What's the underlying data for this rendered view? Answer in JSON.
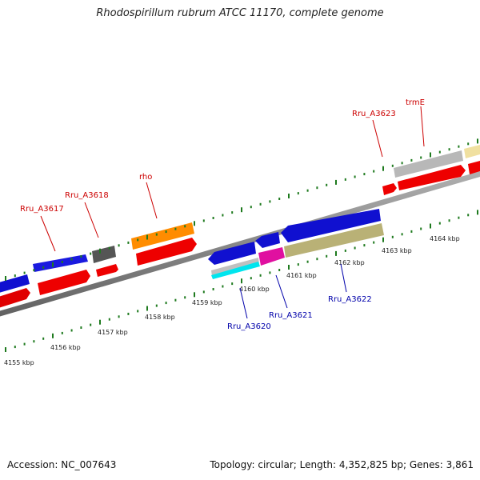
{
  "title": "Rhodospirillum rubrum ATCC 11170, complete genome",
  "footer": {
    "accession": "Accession: NC_007643",
    "stats": "Topology: circular; Length: 4,352,825 bp; Genes: 3,861"
  },
  "colors": {
    "backbone": "#808080",
    "ticks": "#1e7a1e",
    "forward_label": "#cc0000",
    "reverse_label": "#0000aa"
  },
  "kbp_labels": [
    "4155 kbp",
    "4156 kbp",
    "4157 kbp",
    "4158 kbp",
    "4159 kbp",
    "4160 kbp",
    "4161 kbp",
    "4162 kbp",
    "4163 kbp",
    "4164 kbp"
  ],
  "forward_genes": [
    {
      "label": "Rru_A3617",
      "color": "#cc0000"
    },
    {
      "label": "Rru_A3618",
      "color": "#cc0000"
    },
    {
      "label": "rho",
      "color": "#cc0000"
    },
    {
      "label": "Rru_A3623",
      "color": "#cc0000"
    },
    {
      "label": "trmE",
      "color": "#cc0000"
    }
  ],
  "reverse_genes": [
    {
      "label": "Rru_A3620",
      "color": "#0000aa"
    },
    {
      "label": "Rru_A3621",
      "color": "#0000aa"
    },
    {
      "label": "Rru_A3622",
      "color": "#0000aa"
    }
  ]
}
